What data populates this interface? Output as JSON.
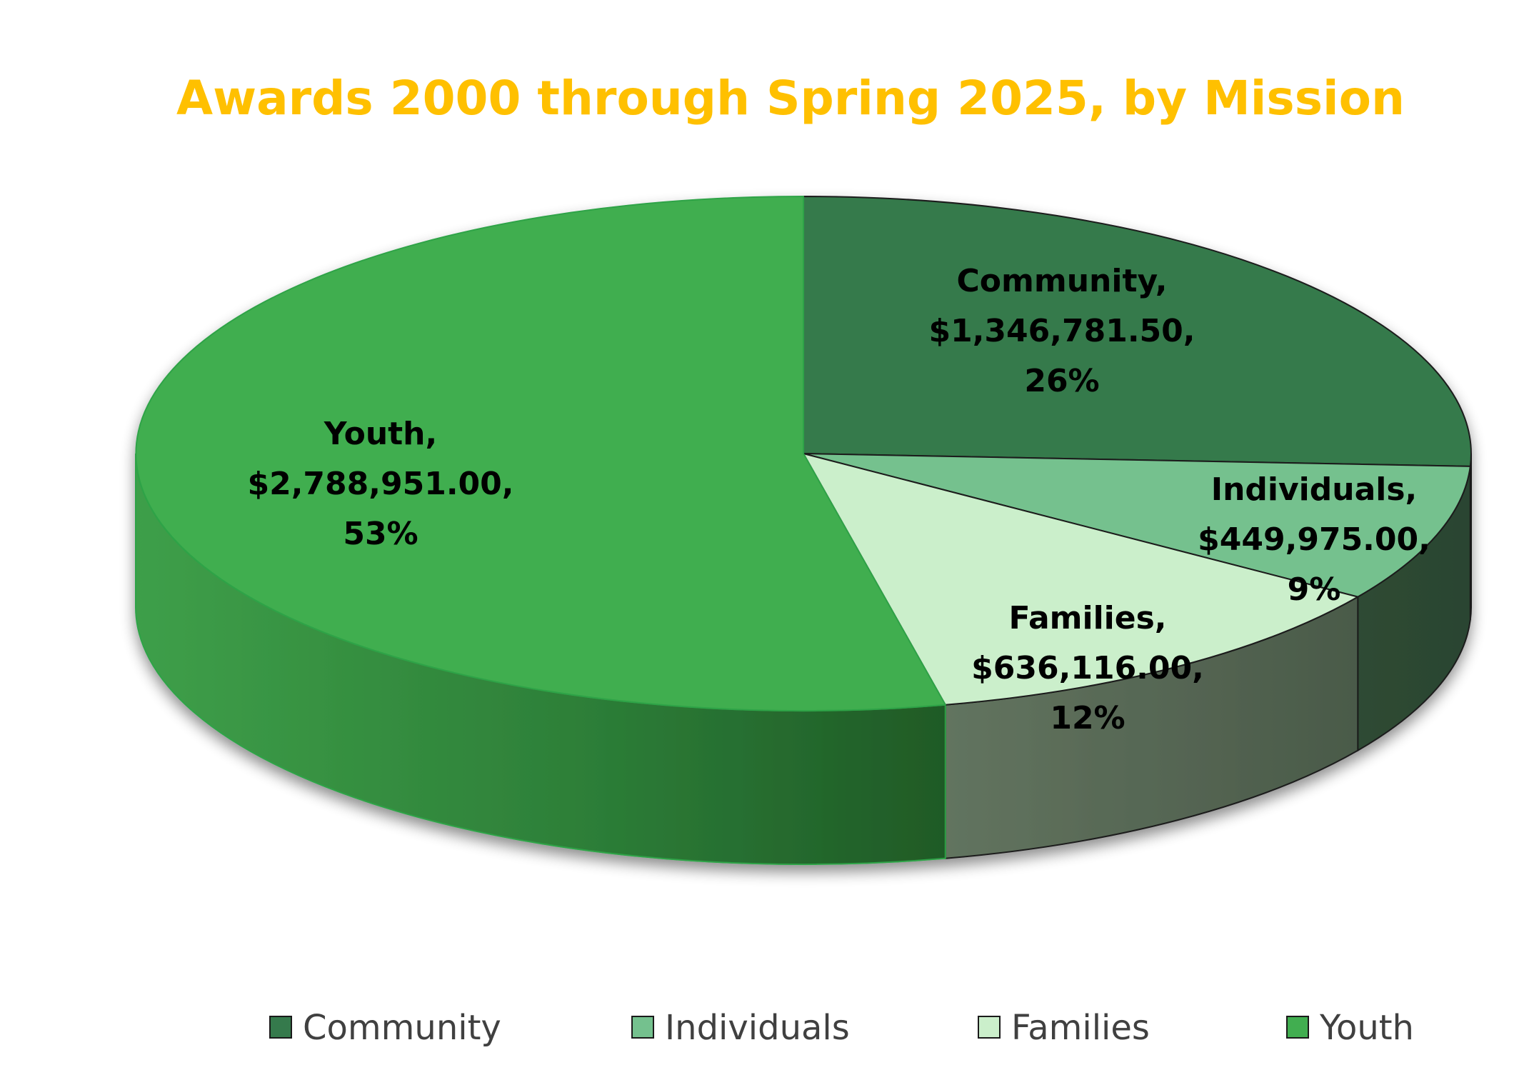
{
  "chart_data": {
    "type": "pie",
    "title": "Awards 2000 through Spring 2025, by Mission",
    "title_color": "#FFC000",
    "legend_position": "bottom",
    "categories": [
      "Community",
      "Individuals",
      "Families",
      "Youth"
    ],
    "values": [
      1346781.5,
      449975.0,
      636116.0,
      2788951.0
    ],
    "value_labels": [
      "$1,346,781.50,",
      "$449,975.00,",
      "$636,116.00,",
      "$2,788,951.00,"
    ],
    "percent_labels": [
      "26%",
      "9%",
      "12%",
      "53%"
    ],
    "category_labels": [
      "Community,",
      "Individuals,",
      "Families,",
      "Youth,"
    ],
    "colors": [
      "#357A4C",
      "#74C18E",
      "#CBEFCB",
      "#41AE50"
    ],
    "side_colors": [
      "#2E4B34",
      "#2E4B34",
      "#536351",
      "#2A7A3A"
    ]
  }
}
